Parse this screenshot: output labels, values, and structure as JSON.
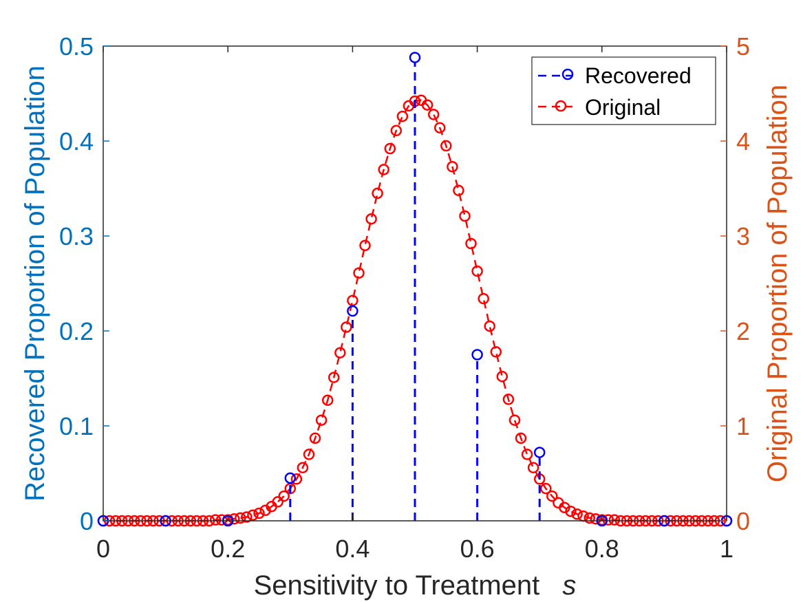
{
  "chart_data": {
    "type": "line",
    "xlabel": "Sensitivity to Treatment",
    "xlabel_var": "s",
    "ylabel_left": "Recovered Proportion of Population",
    "ylabel_right": "Original Proportion of Population",
    "xlim": [
      0,
      1
    ],
    "ylim_left": [
      0,
      0.5
    ],
    "ylim_right": [
      0,
      5
    ],
    "x_ticks": [
      "0",
      "0.2",
      "0.4",
      "0.6",
      "0.8",
      "1"
    ],
    "y_left_ticks": [
      "0",
      "0.1",
      "0.2",
      "0.3",
      "0.4",
      "0.5"
    ],
    "y_right_ticks": [
      "0",
      "1",
      "2",
      "3",
      "4",
      "5"
    ],
    "grid": false,
    "legend_position": "top-right",
    "colors": {
      "left_axis": "#0072BD",
      "right_axis": "#D95319",
      "recovered": "#0000FF",
      "original": "#FF0000"
    },
    "series": [
      {
        "name": "Recovered",
        "axis": "left",
        "style": "stem-dashed-circle",
        "x": [
          0,
          0.1,
          0.2,
          0.3,
          0.4,
          0.5,
          0.6,
          0.7,
          0.8,
          0.9,
          1.0
        ],
        "y": [
          0,
          0,
          0,
          0.045,
          0.221,
          0.488,
          0.175,
          0.072,
          0,
          0,
          0
        ]
      },
      {
        "name": "Original",
        "axis": "right",
        "style": "dashed-line-circle",
        "x": [
          0,
          0.01,
          0.02,
          0.03,
          0.04,
          0.05,
          0.06,
          0.07,
          0.08,
          0.09,
          0.1,
          0.11,
          0.12,
          0.13,
          0.14,
          0.15,
          0.16,
          0.17,
          0.18,
          0.19,
          0.2,
          0.21,
          0.22,
          0.23,
          0.24,
          0.25,
          0.26,
          0.27,
          0.28,
          0.29,
          0.3,
          0.31,
          0.32,
          0.33,
          0.34,
          0.35,
          0.36,
          0.37,
          0.38,
          0.39,
          0.4,
          0.41,
          0.42,
          0.43,
          0.44,
          0.45,
          0.46,
          0.47,
          0.48,
          0.49,
          0.5,
          0.51,
          0.52,
          0.53,
          0.54,
          0.55,
          0.56,
          0.57,
          0.58,
          0.59,
          0.6,
          0.61,
          0.62,
          0.63,
          0.64,
          0.65,
          0.66,
          0.67,
          0.68,
          0.69,
          0.7,
          0.71,
          0.72,
          0.73,
          0.74,
          0.75,
          0.76,
          0.77,
          0.78,
          0.79,
          0.8,
          0.81,
          0.82,
          0.83,
          0.84,
          0.85,
          0.86,
          0.87,
          0.88,
          0.89,
          0.9,
          0.91,
          0.92,
          0.93,
          0.94,
          0.95,
          0.96,
          0.97,
          0.98,
          0.99,
          1.0
        ],
        "y": [
          0.0,
          0.0,
          0.0,
          0.0,
          0.0,
          0.0,
          0.0,
          0.0,
          0.0,
          0.0,
          0.0,
          0.0,
          0.0,
          0.0,
          0.0,
          0.0,
          0.0,
          0.0,
          0.01,
          0.01,
          0.01,
          0.02,
          0.03,
          0.04,
          0.06,
          0.08,
          0.11,
          0.15,
          0.2,
          0.26,
          0.34,
          0.44,
          0.56,
          0.7,
          0.87,
          1.06,
          1.27,
          1.51,
          1.77,
          2.04,
          2.32,
          2.61,
          2.9,
          3.18,
          3.45,
          3.7,
          3.92,
          4.11,
          4.26,
          4.37,
          4.42,
          4.43,
          4.38,
          4.28,
          4.14,
          3.95,
          3.73,
          3.48,
          3.21,
          2.92,
          2.63,
          2.34,
          2.05,
          1.78,
          1.52,
          1.28,
          1.06,
          0.87,
          0.7,
          0.56,
          0.44,
          0.34,
          0.26,
          0.19,
          0.14,
          0.1,
          0.07,
          0.05,
          0.03,
          0.02,
          0.01,
          0.01,
          0.01,
          0.0,
          0.0,
          0.0,
          0.0,
          0.0,
          0.0,
          0.0,
          0.0,
          0.0,
          0.0,
          0.0,
          0.0,
          0.0,
          0.0,
          0.0,
          0.0,
          0.0,
          0.0
        ]
      }
    ]
  }
}
